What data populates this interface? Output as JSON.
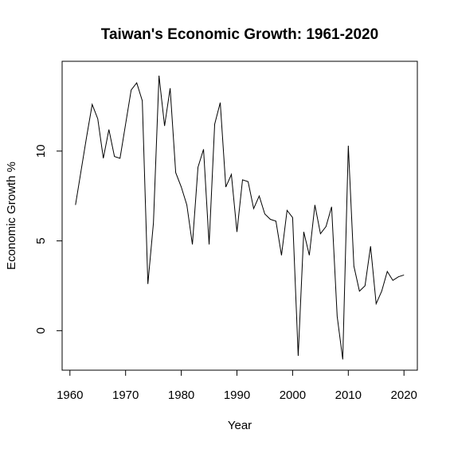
{
  "chart_data": {
    "type": "line",
    "title": "Taiwan's Economic Growth: 1961-2020",
    "xlabel": "Year",
    "ylabel": "Economic Growth %",
    "xlim": [
      1958.6,
      2022.4
    ],
    "ylim": [
      -2.2,
      15.0
    ],
    "x_ticks": [
      1960,
      1970,
      1980,
      1990,
      2000,
      2010,
      2020
    ],
    "y_ticks": [
      0,
      5,
      10
    ],
    "grid": false,
    "series": [
      {
        "x": [
          1961,
          1962,
          1963,
          1964,
          1965,
          1966,
          1967,
          1968,
          1969,
          1970,
          1971,
          1972,
          1973,
          1974,
          1975,
          1976,
          1977,
          1978,
          1979,
          1980,
          1981,
          1982,
          1983,
          1984,
          1985,
          1986,
          1987,
          1988,
          1989,
          1990,
          1991,
          1992,
          1993,
          1994,
          1995,
          1996,
          1997,
          1998,
          1999,
          2000,
          2001,
          2002,
          2003,
          2004,
          2005,
          2006,
          2007,
          2008,
          2009,
          2010,
          2011,
          2012,
          2013,
          2014,
          2015,
          2016,
          2017,
          2018,
          2019,
          2020
        ],
        "values": [
          7.0,
          8.9,
          10.8,
          12.6,
          11.8,
          9.6,
          11.2,
          9.7,
          9.6,
          11.5,
          13.4,
          13.8,
          12.8,
          2.6,
          6.0,
          14.2,
          11.4,
          13.5,
          8.8,
          8.0,
          7.0,
          4.8,
          9.1,
          10.1,
          4.8,
          11.5,
          12.7,
          8.0,
          8.7,
          5.5,
          8.4,
          8.3,
          6.8,
          7.5,
          6.5,
          6.2,
          6.1,
          4.2,
          6.7,
          6.3,
          -1.4,
          5.5,
          4.2,
          7.0,
          5.4,
          5.8,
          6.9,
          0.8,
          -1.6,
          10.3,
          3.6,
          2.2,
          2.5,
          4.7,
          1.5,
          2.2,
          3.3,
          2.8,
          3.0,
          3.1
        ]
      }
    ]
  }
}
